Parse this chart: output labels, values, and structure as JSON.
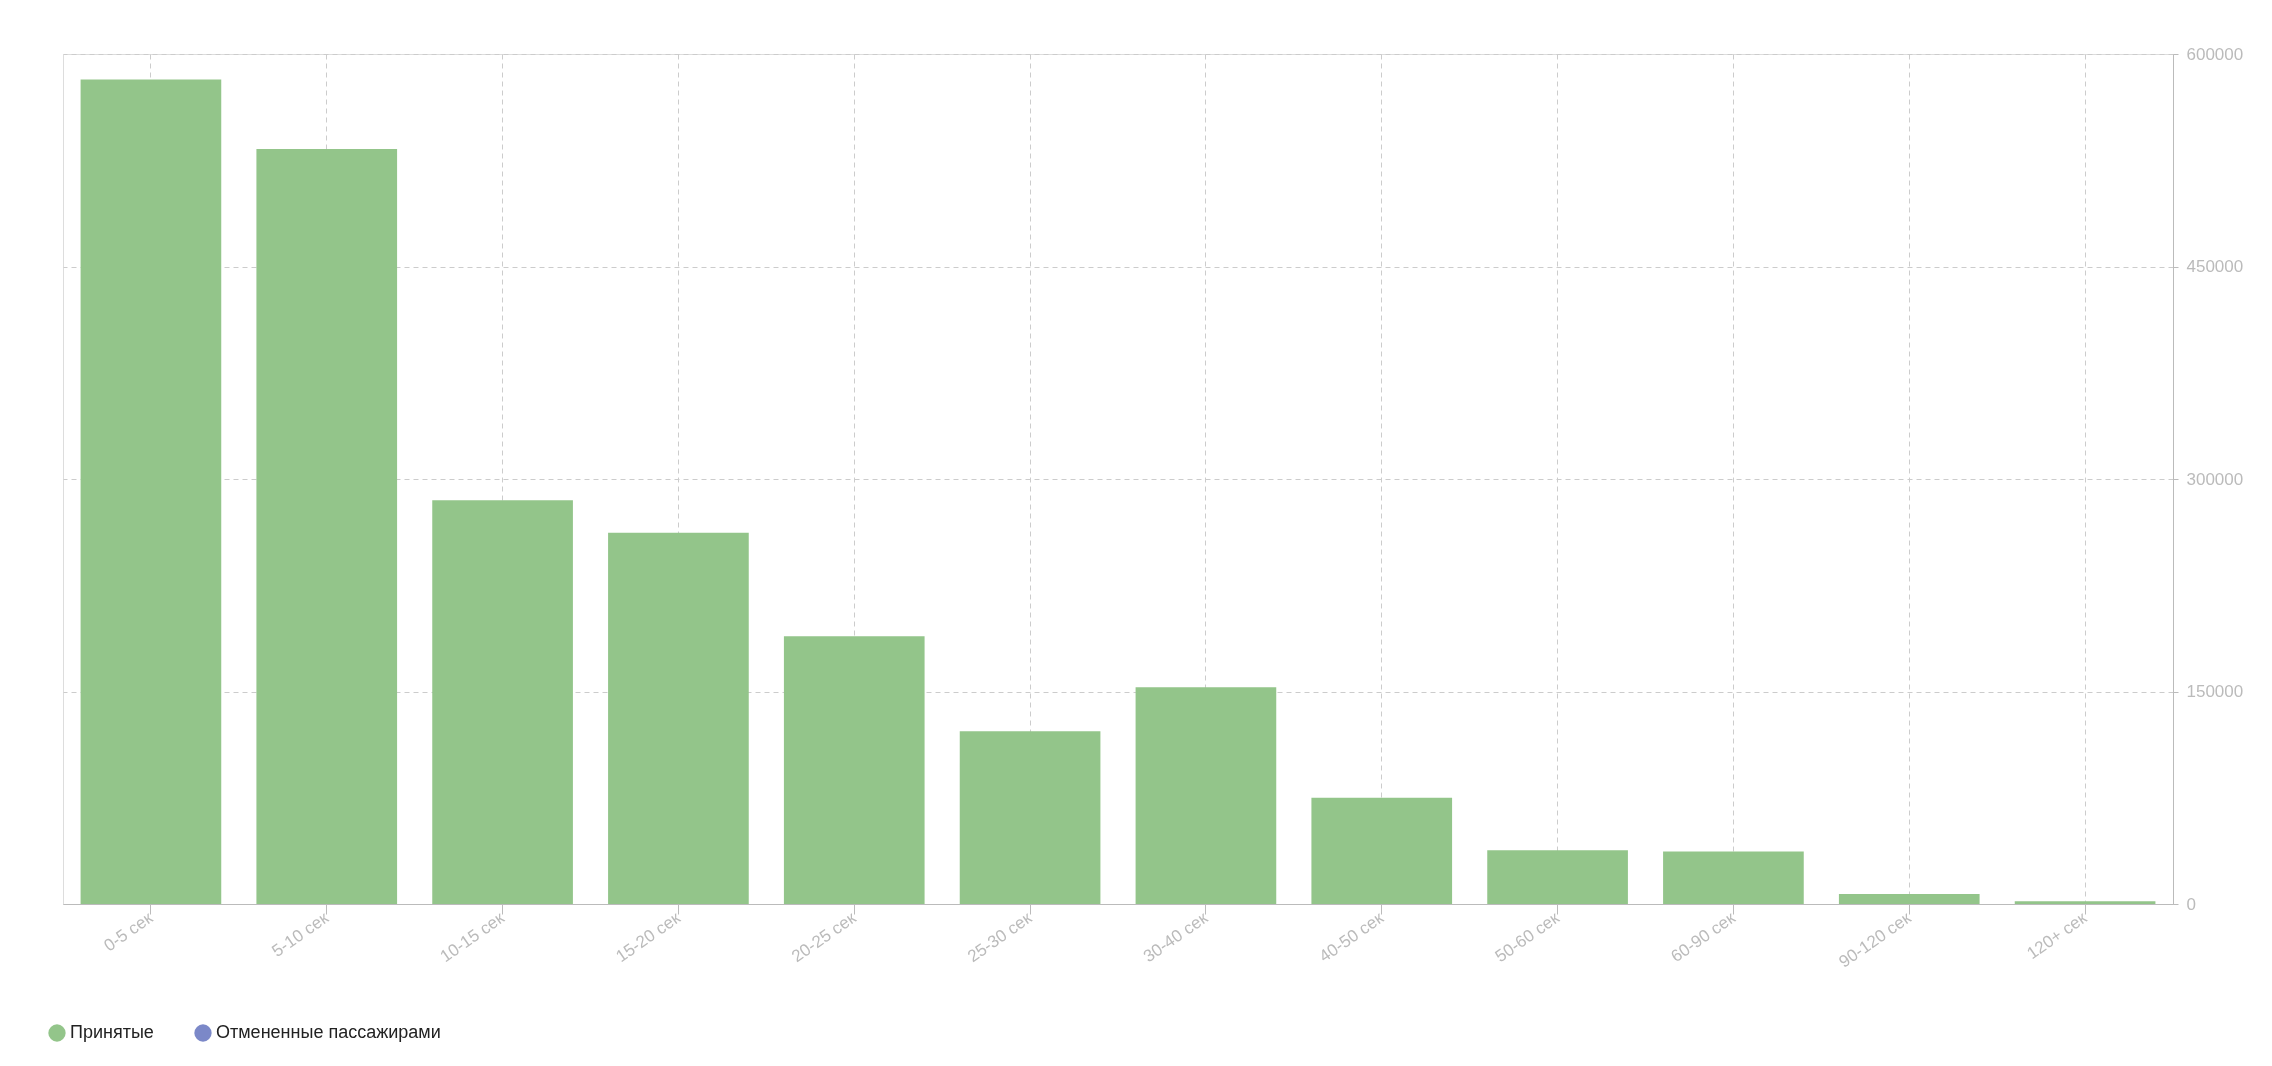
{
  "chart_data": {
    "type": "bar",
    "categories": [
      "0-5 сек",
      "5-10 сек",
      "10-15 сек",
      "15-20 сек",
      "20-25 сек",
      "25-30 сек",
      "30-40 сек",
      "40-50 сек",
      "50-60 сек",
      "60-90 сек",
      "90-120 сек",
      "120+ сек"
    ],
    "series": [
      {
        "name": "Принятые",
        "color": "#93c58a",
        "values": [
          582000,
          533000,
          285000,
          262000,
          189000,
          122000,
          153000,
          75000,
          38000,
          37000,
          7000,
          2000
        ]
      },
      {
        "name": "Отмененные пассажирами",
        "color": "#7b88c8",
        "values": [
          null,
          null,
          null,
          null,
          null,
          null,
          null,
          null,
          null,
          null,
          null,
          null
        ]
      }
    ],
    "ylim": [
      0,
      600000
    ],
    "yticks": [
      0,
      150000,
      300000,
      450000,
      600000
    ],
    "grid": true,
    "legend": "bottom left"
  }
}
